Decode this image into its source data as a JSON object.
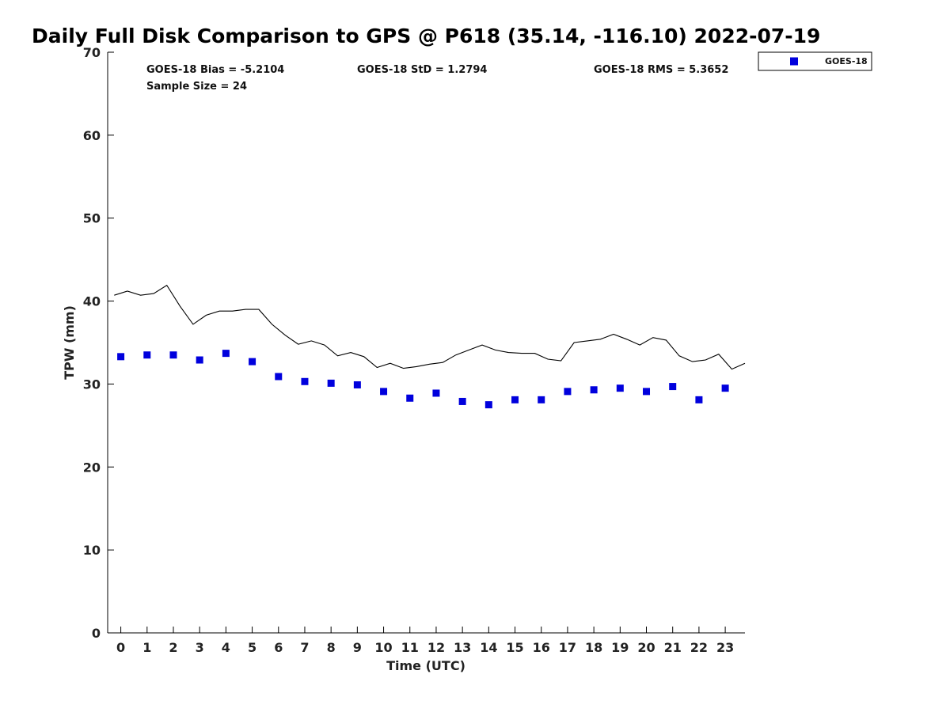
{
  "chart_data": {
    "type": "scatter",
    "title": "Daily Full Disk Comparison to GPS @ P618 (35.14, -116.10) 2022-07-19",
    "xlabel": "Time (UTC)",
    "ylabel": "TPW (mm)",
    "xlim": [
      -0.5,
      23.75
    ],
    "ylim": [
      0,
      70
    ],
    "xticks": [
      0,
      1,
      2,
      3,
      4,
      5,
      6,
      7,
      8,
      9,
      10,
      11,
      12,
      13,
      14,
      15,
      16,
      17,
      18,
      19,
      20,
      21,
      22,
      23
    ],
    "yticks": [
      0,
      10,
      20,
      30,
      40,
      50,
      60,
      70
    ],
    "stats": {
      "bias": "GOES-18 Bias = -5.2104",
      "sample_size": "Sample Size = 24",
      "std": "GOES-18 StD = 1.2794",
      "rms": "GOES-18 RMS = 5.3652"
    },
    "legend": {
      "position": "top-right",
      "entries": [
        "GOES-18"
      ]
    },
    "series": [
      {
        "name": "GOES-18",
        "kind": "scatter",
        "color": "#0000dd",
        "x": [
          0,
          1,
          2,
          3,
          4,
          5,
          6,
          7,
          8,
          9,
          10,
          11,
          12,
          13,
          14,
          15,
          16,
          17,
          18,
          19,
          20,
          21,
          22,
          23
        ],
        "y": [
          33.3,
          33.5,
          33.5,
          32.9,
          33.7,
          32.7,
          30.9,
          30.3,
          30.1,
          29.9,
          29.1,
          28.3,
          28.9,
          27.9,
          27.5,
          28.1,
          28.1,
          29.1,
          29.3,
          29.5,
          29.1,
          29.7,
          28.1,
          29.5
        ]
      },
      {
        "name": "GPS",
        "kind": "line",
        "color": "#000000",
        "x": [
          -0.25,
          0.25,
          0.75,
          1.25,
          1.75,
          2.25,
          2.75,
          3.25,
          3.75,
          4.25,
          4.75,
          5.25,
          5.75,
          6.25,
          6.75,
          7.25,
          7.75,
          8.25,
          8.75,
          9.25,
          9.75,
          10.25,
          10.75,
          11.25,
          11.75,
          12.25,
          12.75,
          13.25,
          13.75,
          14.25,
          14.75,
          15.25,
          15.75,
          16.25,
          16.75,
          17.25,
          17.75,
          18.25,
          18.75,
          19.25,
          19.75,
          20.25,
          20.75,
          21.25,
          21.75,
          22.25,
          22.75,
          23.25,
          23.75
        ],
        "y": [
          40.7,
          41.2,
          40.7,
          40.9,
          41.9,
          39.4,
          37.2,
          38.3,
          38.8,
          38.8,
          39.0,
          39.0,
          37.2,
          35.9,
          34.8,
          35.2,
          34.7,
          33.4,
          33.8,
          33.3,
          32.0,
          32.5,
          31.9,
          32.1,
          32.4,
          32.6,
          33.5,
          34.1,
          34.7,
          34.1,
          33.8,
          33.7,
          33.7,
          33.0,
          32.8,
          35.0,
          35.2,
          35.4,
          36.0,
          35.4,
          34.7,
          35.6,
          35.3,
          33.4,
          32.7,
          32.9,
          33.6,
          31.8,
          32.5
        ]
      }
    ]
  }
}
